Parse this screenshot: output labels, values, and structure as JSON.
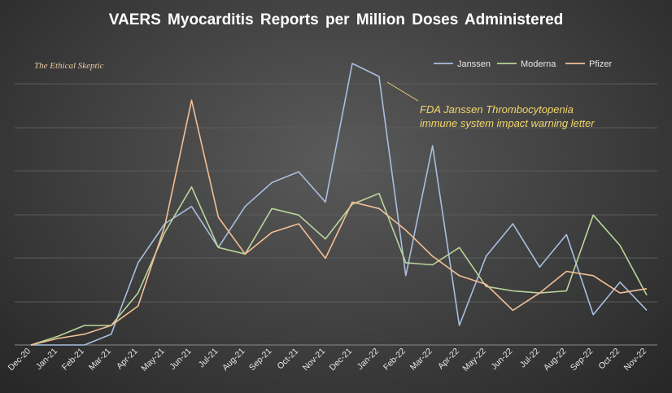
{
  "chart_data": {
    "type": "line",
    "title": "VAERS Myocarditis Reports per Million Doses Administered",
    "watermark": "The Ethical Skeptic",
    "xlabel": "",
    "ylabel": "",
    "ylim": [
      0,
      6.5
    ],
    "grid": true,
    "legend_position": "top-right",
    "categories": [
      "Dec-20",
      "Jan-21",
      "Feb-21",
      "Mar-21",
      "Apr-21",
      "May-21",
      "Jun-21",
      "Jul-21",
      "Aug-21",
      "Sep-21",
      "Oct-21",
      "Nov-21",
      "Dec-21",
      "Jan-22",
      "Feb-22",
      "Mar-22",
      "Apr-22",
      "May-22",
      "Jun-22",
      "Jul-22",
      "Aug-22",
      "Sep-22",
      "Oct-22",
      "Nov-22"
    ],
    "series": [
      {
        "name": "Janssen",
        "color": "#a9bedf",
        "values": [
          0,
          0,
          0,
          0.25,
          1.9,
          2.8,
          3.2,
          2.25,
          3.2,
          3.75,
          4.0,
          3.3,
          6.5,
          6.2,
          1.6,
          4.6,
          0.45,
          2.05,
          2.8,
          1.8,
          2.55,
          0.7,
          1.45,
          0.8
        ]
      },
      {
        "name": "Moderna",
        "color": "#b9d59a",
        "values": [
          0,
          0.2,
          0.45,
          0.45,
          1.2,
          2.6,
          3.65,
          2.25,
          2.1,
          3.15,
          3.0,
          2.45,
          3.25,
          3.5,
          1.9,
          1.85,
          2.25,
          1.35,
          1.25,
          1.2,
          1.25,
          3.0,
          2.3,
          1.15
        ]
      },
      {
        "name": "Pfizer",
        "color": "#f3bf95",
        "values": [
          0,
          0.15,
          0.25,
          0.45,
          0.9,
          2.75,
          5.65,
          2.95,
          2.1,
          2.6,
          2.8,
          2.0,
          3.3,
          3.15,
          2.65,
          2.05,
          1.6,
          1.4,
          0.8,
          1.2,
          1.7,
          1.6,
          1.2,
          1.3
        ]
      }
    ],
    "annotation": {
      "line1": "FDA Janssen Thrombocytopenia",
      "line2": "immune system impact warning letter",
      "target_series": "Janssen",
      "target_category": "Jan-22"
    }
  }
}
